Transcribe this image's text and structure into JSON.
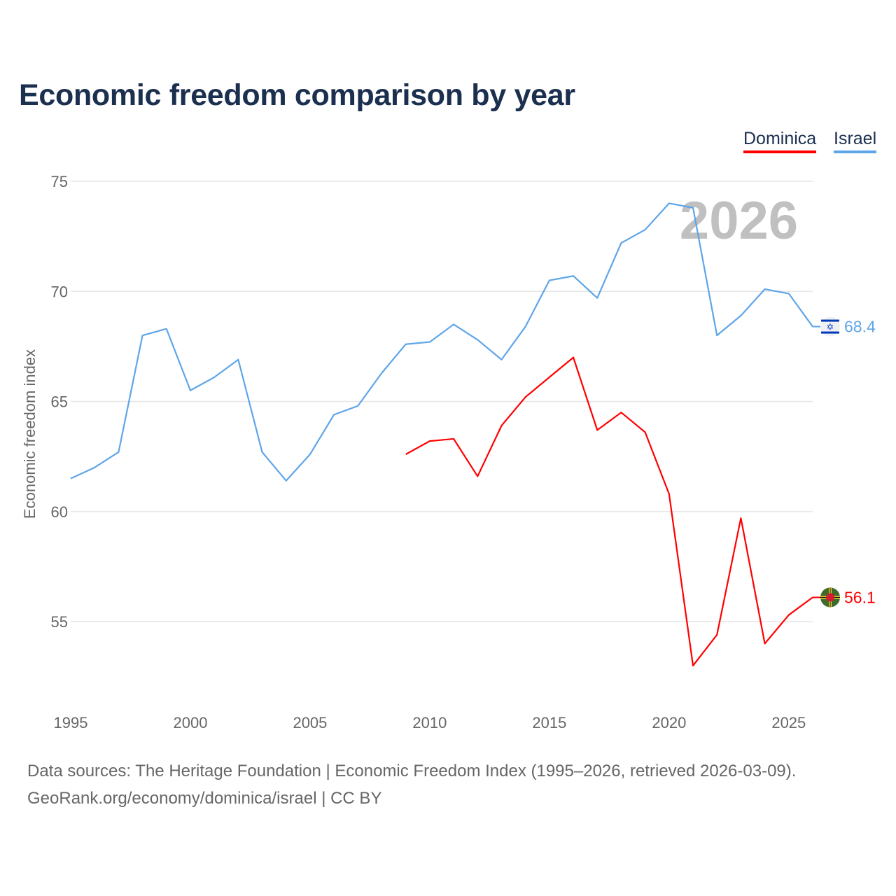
{
  "title": "Economic freedom comparison by year",
  "legend": [
    {
      "name": "Dominica",
      "color": "#ff0000"
    },
    {
      "name": "Israel",
      "color": "#5ea5e8"
    }
  ],
  "footer": {
    "sources": "Data sources: The Heritage Foundation | Economic Freedom Index (1995–2026, retrieved 2026-03-09).",
    "credit": "GeoRank.org/economy/dominica/israel | CC BY"
  },
  "chart_data": {
    "type": "line",
    "title": "Economic freedom comparison by year",
    "xlabel": "",
    "ylabel": "Economic freedom index",
    "year_watermark": "2026",
    "xlim": [
      1995,
      2026
    ],
    "ylim": [
      51.5,
      75
    ],
    "xticks": [
      "1995",
      "2000",
      "2005",
      "2010",
      "2015",
      "2020",
      "2025"
    ],
    "yticks": [
      "75",
      "70",
      "65",
      "60",
      "55"
    ],
    "grid": true,
    "legend_position": "top-right",
    "series": [
      {
        "name": "Israel",
        "color": "#5ea5e8",
        "end_label": "68.4",
        "flag": "israel-flag",
        "x": [
          1995,
          1996,
          1997,
          1998,
          1999,
          2000,
          2001,
          2002,
          2003,
          2004,
          2005,
          2006,
          2007,
          2008,
          2009,
          2010,
          2011,
          2012,
          2013,
          2014,
          2015,
          2016,
          2017,
          2018,
          2019,
          2020,
          2021,
          2022,
          2023,
          2024,
          2025,
          2026
        ],
        "values": [
          61.5,
          62.0,
          62.7,
          68.0,
          68.3,
          65.5,
          66.1,
          66.9,
          62.7,
          61.4,
          62.6,
          64.4,
          64.8,
          66.3,
          67.6,
          67.7,
          68.5,
          67.8,
          66.9,
          68.4,
          70.5,
          70.7,
          69.7,
          72.2,
          72.8,
          74.0,
          73.8,
          68.0,
          68.9,
          70.1,
          69.9,
          68.4
        ]
      },
      {
        "name": "Dominica",
        "color": "#ff0000",
        "end_label": "56.1",
        "flag": "dominica-flag",
        "x": [
          2009,
          2010,
          2011,
          2012,
          2013,
          2014,
          2015,
          2016,
          2017,
          2018,
          2019,
          2020,
          2021,
          2022,
          2023,
          2024,
          2025,
          2026
        ],
        "values": [
          62.6,
          63.2,
          63.3,
          61.6,
          63.9,
          65.2,
          66.1,
          67.0,
          63.7,
          64.5,
          63.6,
          60.8,
          53.0,
          54.4,
          59.7,
          54.0,
          55.3,
          56.1
        ]
      }
    ]
  }
}
